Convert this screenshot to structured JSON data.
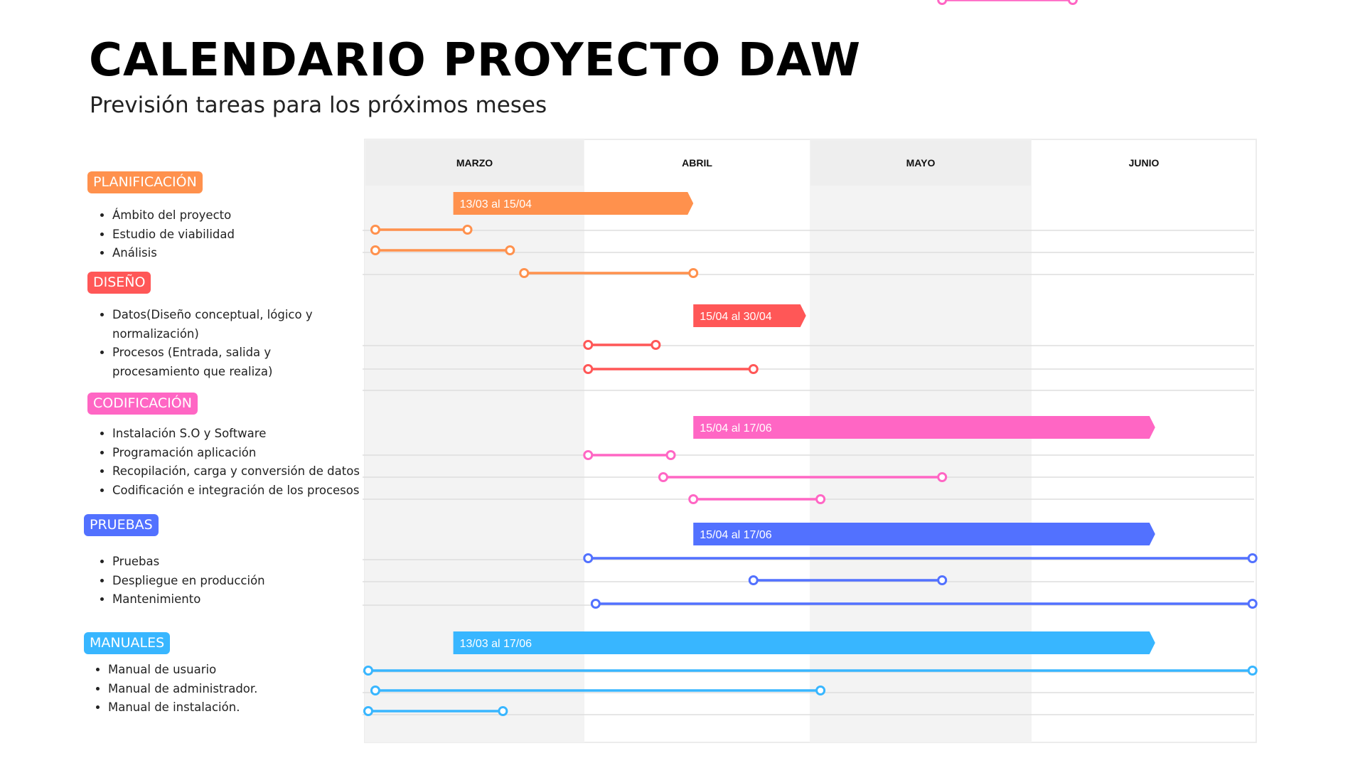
{
  "title": "CALENDARIO PROYECTO DAW",
  "subtitle": "Previsión tareas para los próximos meses",
  "months": [
    "MARZO",
    "ABRIL",
    "MAYO",
    "JUNIO"
  ],
  "phases": [
    {
      "name": "PLANIFICACIÓN",
      "color": "#FF914D",
      "range_label": "13/03 al 15/04",
      "tasks": [
        "Ámbito del proyecto",
        "Estudio de viabilidad",
        "Análisis"
      ]
    },
    {
      "name": "DISEÑO",
      "color": "#FF5757",
      "range_label": "15/04 al 30/04",
      "tasks": [
        "Datos(Diseño conceptual, lógico y normalización)",
        "Procesos (Entrada, salida y procesamiento que realiza)"
      ]
    },
    {
      "name": "CODIFICACIÓN",
      "color": "#FF66C4",
      "range_label": "15/04 al 17/06",
      "tasks": [
        "Instalación S.O y Software",
        "Programación aplicación",
        "Recopilación, carga y conversión de datos",
        "Codificación e integración de los procesos"
      ]
    },
    {
      "name": "PRUEBAS",
      "color": "#5271FF",
      "range_label": "15/04 al 17/06",
      "tasks": [
        "Pruebas",
        "Despliegue en producción",
        "Mantenimiento"
      ]
    },
    {
      "name": "MANUALES",
      "color": "#38B6FF",
      "range_label": "13/03 al 17/06",
      "tasks": [
        "Manual de usuario",
        "Manual de administrador.",
        "Manual de instalación."
      ]
    }
  ],
  "chart_data": {
    "type": "gantt",
    "x_axis": "date",
    "x_range": [
      "03-01",
      "06-30"
    ],
    "phases": [
      {
        "name": "PLANIFICACIÓN",
        "start": "03-13",
        "end": "04-15",
        "segments": [
          {
            "start": "03-02",
            "end": "03-15"
          },
          {
            "start": "03-02",
            "end": "03-21"
          },
          {
            "start": "03-23",
            "end": "04-15"
          }
        ]
      },
      {
        "name": "DISEÑO",
        "start": "04-15",
        "end": "04-30",
        "segments": [
          {
            "start": "04-01",
            "end": "04-10"
          },
          {
            "start": "04-01",
            "end": "04-23"
          }
        ]
      },
      {
        "name": "CODIFICACIÓN",
        "start": "04-15",
        "end": "06-17",
        "segments": [
          {
            "start": "04-01",
            "end": "04-12"
          },
          {
            "start": "04-11",
            "end": "05-19"
          },
          {
            "start": "04-15",
            "end": "05-02"
          },
          {
            "start": "05-19",
            "end": "06-06"
          }
        ]
      },
      {
        "name": "PRUEBAS",
        "start": "04-15",
        "end": "06-17",
        "segments": [
          {
            "start": "04-01",
            "end": "06-30"
          },
          {
            "start": "04-23",
            "end": "05-19"
          },
          {
            "start": "04-02",
            "end": "06-30"
          }
        ]
      },
      {
        "name": "MANUALES",
        "start": "03-13",
        "end": "06-17",
        "segments": [
          {
            "start": "03-01",
            "end": "06-30"
          },
          {
            "start": "03-02",
            "end": "05-02"
          },
          {
            "start": "03-01",
            "end": "03-20"
          }
        ]
      }
    ]
  }
}
